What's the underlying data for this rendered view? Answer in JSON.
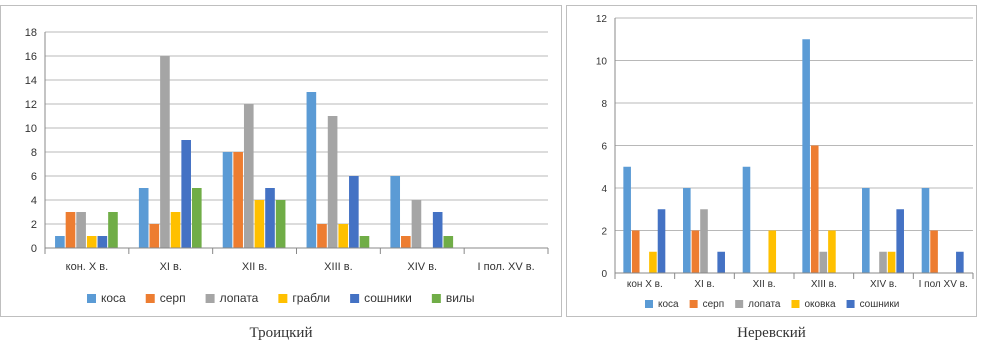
{
  "chart_data": [
    {
      "type": "bar",
      "title": "",
      "caption": "Троицкий",
      "categories": [
        "кон. X в.",
        "XI в.",
        "XII в.",
        "XIII в.",
        "XIV в.",
        "I пол. XV в."
      ],
      "ylim": [
        0,
        18
      ],
      "yticks": [
        0,
        2,
        4,
        6,
        8,
        10,
        12,
        14,
        16,
        18
      ],
      "grid": true,
      "legend_position": "bottom",
      "series": [
        {
          "name": "коса",
          "color": "#5b9bd5",
          "values": [
            1,
            5,
            8,
            13,
            6,
            0
          ]
        },
        {
          "name": "серп",
          "color": "#ed7d31",
          "values": [
            3,
            2,
            8,
            2,
            1,
            0
          ]
        },
        {
          "name": "лопата",
          "color": "#a5a5a5",
          "values": [
            3,
            16,
            12,
            11,
            4,
            0
          ]
        },
        {
          "name": "грабли",
          "color": "#ffc000",
          "values": [
            1,
            3,
            4,
            2,
            0,
            0
          ]
        },
        {
          "name": "сошники",
          "color": "#4472c4",
          "values": [
            1,
            9,
            5,
            6,
            3,
            0
          ]
        },
        {
          "name": "вилы",
          "color": "#70ad47",
          "values": [
            3,
            5,
            4,
            1,
            1,
            0
          ]
        }
      ]
    },
    {
      "type": "bar",
      "title": "",
      "caption": "Неревский",
      "categories": [
        "кон X в.",
        "XI в.",
        "XII в.",
        "XIII в.",
        "XIV в.",
        "I пол XV в."
      ],
      "ylim": [
        0,
        12
      ],
      "yticks": [
        0,
        2,
        4,
        6,
        8,
        10,
        12
      ],
      "grid": true,
      "legend_position": "bottom",
      "series": [
        {
          "name": "коса",
          "color": "#5b9bd5",
          "values": [
            5,
            4,
            5,
            11,
            4,
            4
          ]
        },
        {
          "name": "серп",
          "color": "#ed7d31",
          "values": [
            2,
            2,
            0,
            6,
            0,
            2
          ]
        },
        {
          "name": "лопата",
          "color": "#a5a5a5",
          "values": [
            0,
            3,
            0,
            1,
            1,
            0
          ]
        },
        {
          "name": "оковка",
          "color": "#ffc000",
          "values": [
            1,
            0,
            2,
            2,
            1,
            0
          ]
        },
        {
          "name": "сошники",
          "color": "#4472c4",
          "values": [
            3,
            1,
            0,
            0,
            3,
            1
          ]
        }
      ]
    }
  ]
}
